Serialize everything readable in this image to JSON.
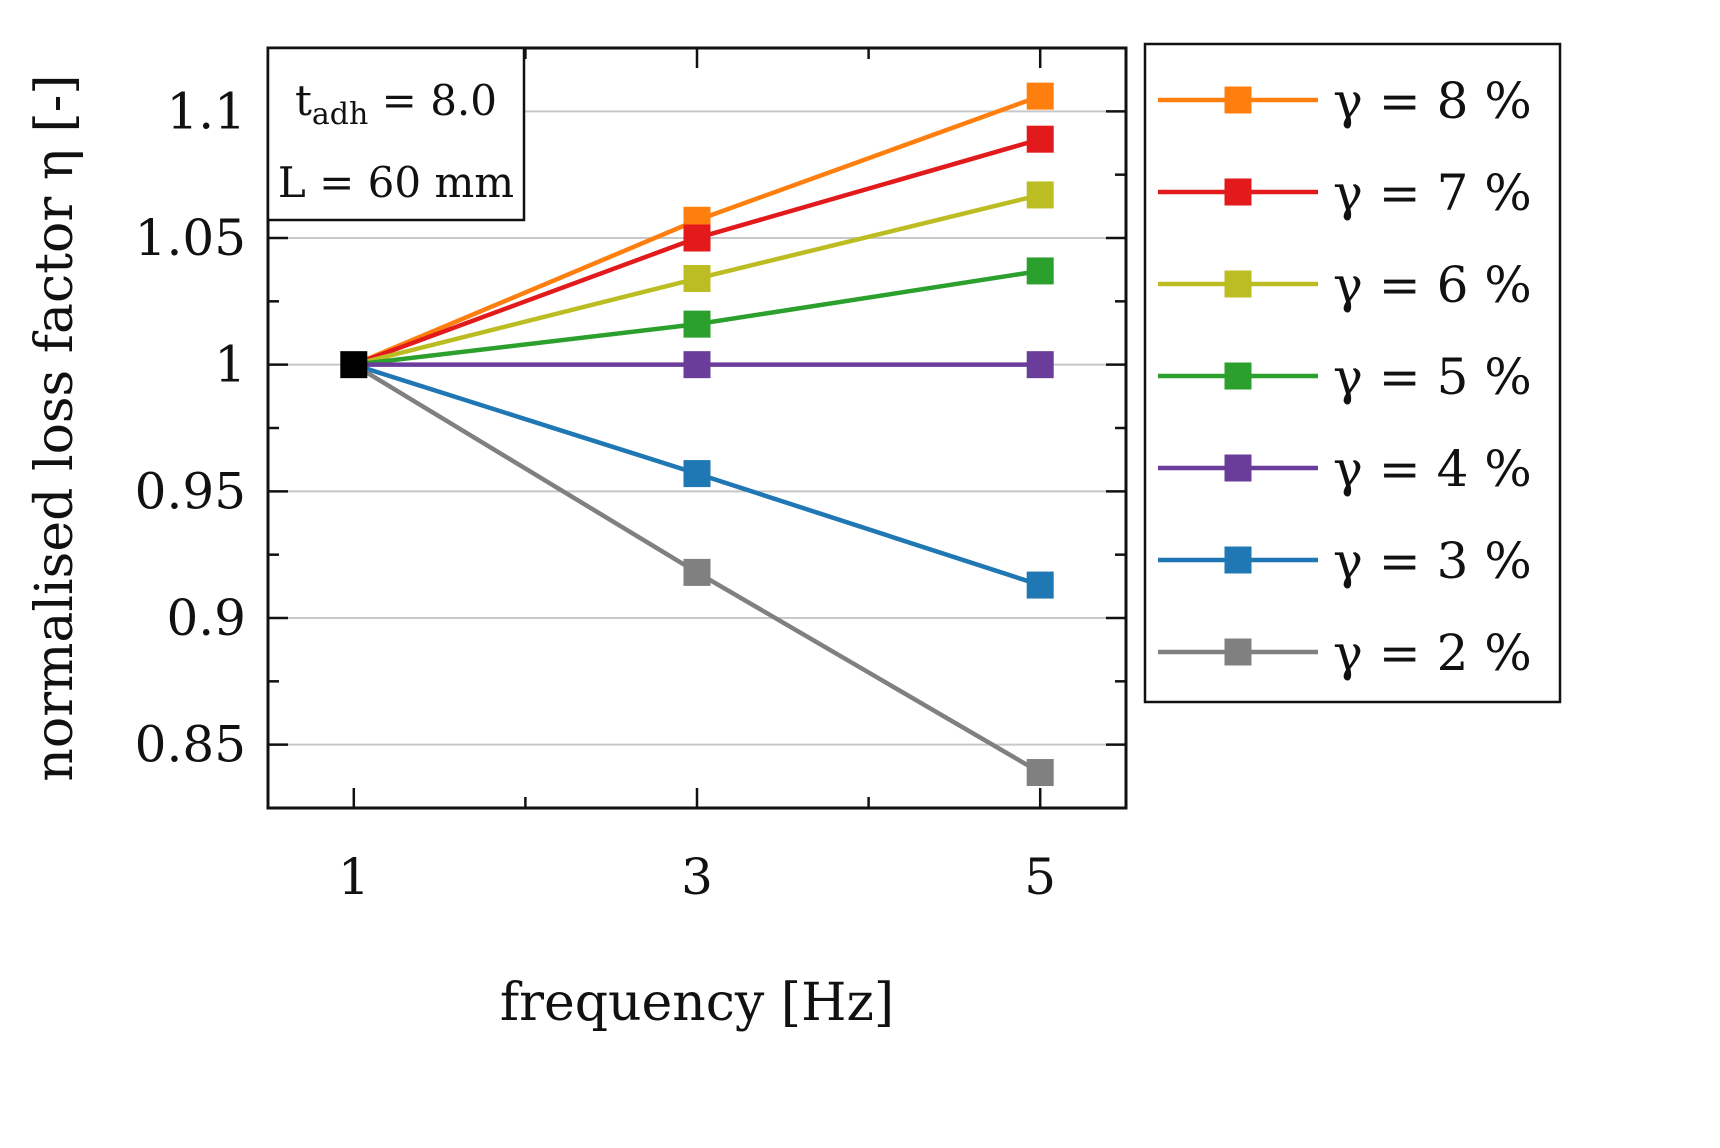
{
  "chart_data": {
    "type": "line",
    "title": "",
    "xlabel": "frequency [Hz]",
    "ylabel": "normalised loss factor η [-]",
    "x": [
      1,
      3,
      5
    ],
    "x_tick_labels": [
      "1",
      "3",
      "5"
    ],
    "xlim": [
      0.5,
      5.5
    ],
    "ylim": [
      0.825,
      1.125
    ],
    "y_ticks": [
      0.85,
      0.9,
      0.95,
      1,
      1.05,
      1.1
    ],
    "y_tick_labels": [
      "0.85",
      "0.9",
      "0.95",
      "1",
      "1.05",
      "1.1"
    ],
    "grid": true,
    "legend_position": "outside-right",
    "reference_point": {
      "x": 1,
      "y": 1,
      "color": "#000000"
    },
    "annotation": {
      "t_symbol": "t",
      "t_subscript": "adh",
      "t_value": " = 8.0",
      "length": "L = 60 mm"
    },
    "series": [
      {
        "name": "γ = 8 %",
        "color": "#ff7f0e",
        "values": [
          1.0,
          1.057,
          1.106
        ]
      },
      {
        "name": "γ = 7 %",
        "color": "#e31a1c",
        "values": [
          1.0,
          1.05,
          1.089
        ]
      },
      {
        "name": "γ = 6 %",
        "color": "#bcbd22",
        "values": [
          1.0,
          1.034,
          1.067
        ]
      },
      {
        "name": "γ = 5 %",
        "color": "#2ca02c",
        "values": [
          1.0,
          1.016,
          1.037
        ]
      },
      {
        "name": "γ = 4 %",
        "color": "#6a3d9a",
        "values": [
          1.0,
          1.0,
          1.0
        ]
      },
      {
        "name": "γ = 3 %",
        "color": "#1f77b4",
        "values": [
          1.0,
          0.957,
          0.913
        ]
      },
      {
        "name": "γ = 2 %",
        "color": "#808080",
        "values": [
          1.0,
          0.918,
          0.839
        ]
      }
    ]
  }
}
